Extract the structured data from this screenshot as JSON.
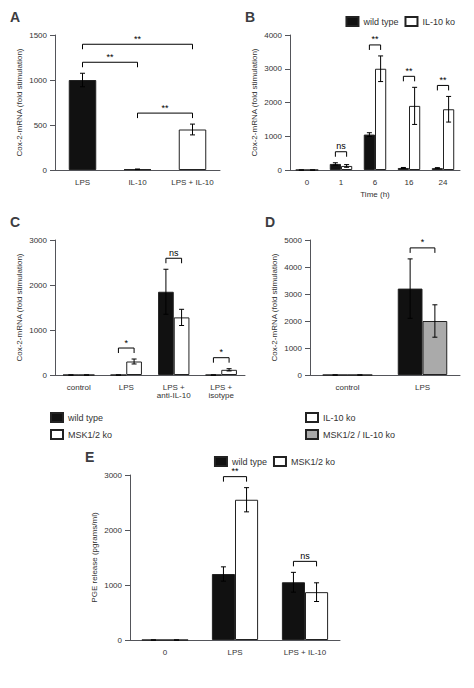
{
  "chart_data": [
    {
      "type": "bar",
      "title": "A",
      "categories": [
        "LPS",
        "IL-10",
        "LPS + IL-10"
      ],
      "values": [
        1000,
        8,
        450
      ],
      "errors": [
        75,
        3,
        60
      ],
      "colors": [
        "#111111",
        "#111111",
        "#ffffff"
      ],
      "ylim": [
        0,
        1500
      ],
      "yticks": [
        0,
        500,
        1000,
        1500
      ],
      "ylabel": "Cox-2-mRNA (fold stimulation)",
      "grid": false,
      "annotations": [
        {
          "text": "**",
          "categories": [
            "LPS",
            "IL-10"
          ]
        },
        {
          "text": "**",
          "categories": [
            "LPS",
            "LPS + IL-10"
          ]
        },
        {
          "text": "**",
          "categories": [
            "IL-10",
            "LPS + IL-10"
          ]
        }
      ]
    },
    {
      "type": "bar",
      "title": "B",
      "categories": [
        "0",
        "1",
        "6",
        "16",
        "24"
      ],
      "series": [
        {
          "name": "wild type",
          "color": "#111111",
          "values": [
            0,
            180,
            1050,
            60,
            55
          ],
          "errors": [
            0,
            35,
            55,
            15,
            15
          ]
        },
        {
          "name": "IL-10 ko",
          "color": "#ffffff",
          "values": [
            0,
            120,
            3000,
            1900,
            1800
          ],
          "errors": [
            0,
            40,
            380,
            550,
            380
          ]
        }
      ],
      "ylim": [
        0,
        4000
      ],
      "yticks": [
        0,
        1000,
        2000,
        3000,
        4000
      ],
      "ylabel": "Cox-2-mRNA (fold stimulation)",
      "xlabel": "Time (h)",
      "grid": false,
      "legend": "upper right",
      "annotations": [
        {
          "text": "ns",
          "category": "1"
        },
        {
          "text": "**",
          "category": "6"
        },
        {
          "text": "**",
          "category": "16"
        },
        {
          "text": "**",
          "category": "24"
        }
      ]
    },
    {
      "type": "bar",
      "title": "C",
      "categories": [
        "control",
        "LPS",
        "LPS +\nanti-IL-10",
        "LPS +\nisotype"
      ],
      "series": [
        {
          "name": "wild type",
          "color": "#111111",
          "values": [
            0,
            0,
            1850,
            0
          ],
          "errors": [
            0,
            0,
            500,
            0
          ]
        },
        {
          "name": "MSK1/2 ko",
          "color": "#ffffff",
          "values": [
            0,
            300,
            1280,
            115
          ],
          "errors": [
            0,
            55,
            180,
            25
          ]
        }
      ],
      "ylim": [
        0,
        3000
      ],
      "yticks": [
        0,
        1000,
        2000,
        3000
      ],
      "ylabel": "Cox-2-mRNA (fold stimulation)",
      "grid": false,
      "legend": "lower left",
      "annotations": [
        {
          "text": "*",
          "category": "LPS"
        },
        {
          "text": "ns",
          "category": "LPS +\nanti-IL-10"
        },
        {
          "text": "*",
          "category": "LPS +\nisotype"
        }
      ]
    },
    {
      "type": "bar",
      "title": "D",
      "categories": [
        "control",
        "LPS"
      ],
      "series": [
        {
          "name": "IL-10 ko",
          "color": "#111111",
          "values": [
            0,
            3200
          ],
          "errors": [
            0,
            1100
          ]
        },
        {
          "name": "MSK1/2 / IL-10 ko",
          "color": "#aaaaaa",
          "values": [
            0,
            2000
          ],
          "errors": [
            0,
            600
          ]
        }
      ],
      "ylim": [
        0,
        5000
      ],
      "yticks": [
        0,
        1000,
        2000,
        3000,
        4000,
        5000
      ],
      "ylabel": "Cox-2-mRNA (fold stimulation)",
      "grid": false,
      "legend": "lower left",
      "annotations": [
        {
          "text": "*",
          "category": "LPS"
        }
      ]
    },
    {
      "type": "bar",
      "title": "E",
      "categories": [
        "0",
        "LPS",
        "LPS + IL-10"
      ],
      "series": [
        {
          "name": "wild type",
          "color": "#111111",
          "values": [
            0,
            1200,
            1050
          ],
          "errors": [
            0,
            130,
            180
          ]
        },
        {
          "name": "MSK1/2 ko",
          "color": "#ffffff",
          "values": [
            0,
            2550,
            870
          ],
          "errors": [
            0,
            220,
            170
          ]
        }
      ],
      "ylim": [
        0,
        3000
      ],
      "yticks": [
        0,
        1000,
        2000,
        3000
      ],
      "ylabel": "PGE release (pgrams/ml)",
      "grid": false,
      "legend": "upper right",
      "annotations": [
        {
          "text": "**",
          "category": "LPS"
        },
        {
          "text": "ns",
          "category": "LPS + IL-10"
        }
      ]
    }
  ]
}
